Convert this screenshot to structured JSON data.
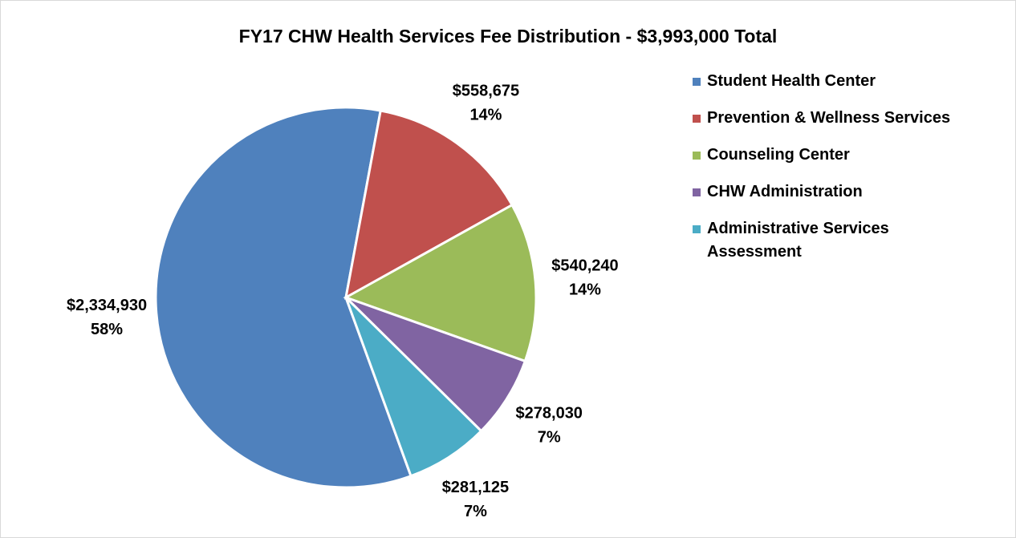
{
  "chart_data": {
    "type": "pie",
    "title": "FY17 CHW Health Services Fee Distribution - $3,993,000 Total",
    "categories": [
      "Student Health Center",
      "Prevention & Wellness Services",
      "Counseling Center",
      "CHW Administration",
      "Administrative Services Assessment"
    ],
    "values": [
      2334930,
      558675,
      540240,
      278030,
      281125
    ],
    "value_labels": [
      "$2,334,930",
      "$558,675",
      "$540,240",
      "$278,030",
      "$281,125"
    ],
    "percents": [
      58,
      14,
      14,
      7,
      7
    ],
    "percent_labels": [
      "58%",
      "14%",
      "14%",
      "7%",
      "7%"
    ],
    "colors": [
      "#4f81bd",
      "#c0504d",
      "#9bbb59",
      "#8064a2",
      "#4bacc6"
    ],
    "start_angle": 160,
    "legend": "right"
  }
}
